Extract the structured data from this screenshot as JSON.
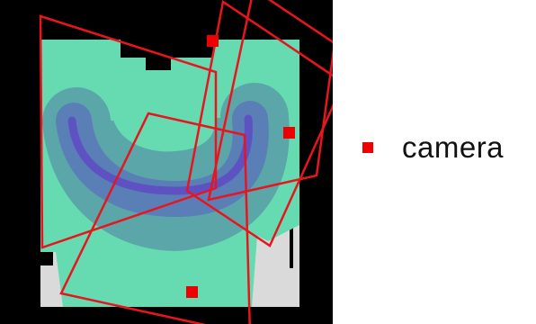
{
  "legend": {
    "label": "camera",
    "marker_color": "#ee0000"
  },
  "colors": {
    "background": "#000000",
    "floor": "#dadada",
    "coverage_1": "#66dbb2",
    "coverage_2": "#5aa6a8",
    "coverage_3": "#5a7fb6",
    "coverage_4": "#5e52c2",
    "fov_outline": "#e8141e"
  }
}
